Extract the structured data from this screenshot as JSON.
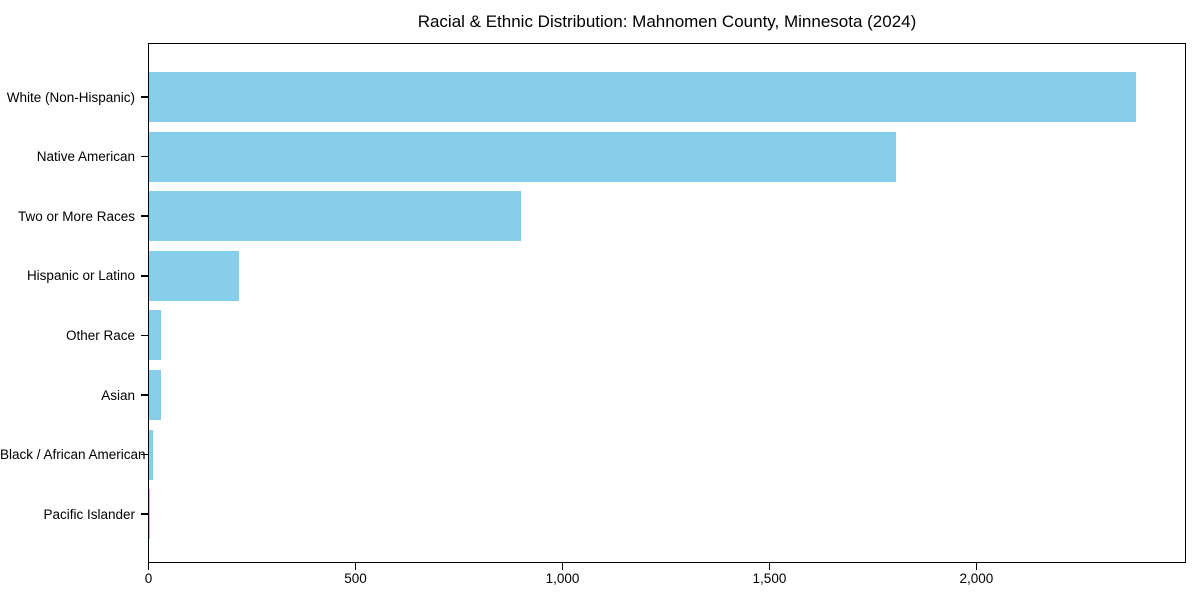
{
  "title": "Racial & Ethnic Distribution: Mahnomen County, Minnesota (2024)",
  "chart_data": {
    "type": "bar",
    "orientation": "horizontal",
    "title": "Racial & Ethnic Distribution: Mahnomen County, Minnesota (2024)",
    "xlabel": "",
    "ylabel": "",
    "categories": [
      "White (Non-Hispanic)",
      "Native American",
      "Two or More Races",
      "Hispanic or Latino",
      "Other Race",
      "Asian",
      "Black / African American",
      "Pacific Islander"
    ],
    "values": [
      2385,
      1805,
      900,
      218,
      31,
      30,
      10,
      2
    ],
    "xlim": [
      0,
      2505
    ],
    "xticks": [
      0,
      500,
      1000,
      1500,
      2000
    ],
    "xtick_labels": [
      "0",
      "500",
      "1,000",
      "1,500",
      "2,000"
    ],
    "bar_color": "#87CEEB",
    "axis_color": "#000000",
    "text_color": "#000000",
    "grid": false,
    "legend": null
  }
}
